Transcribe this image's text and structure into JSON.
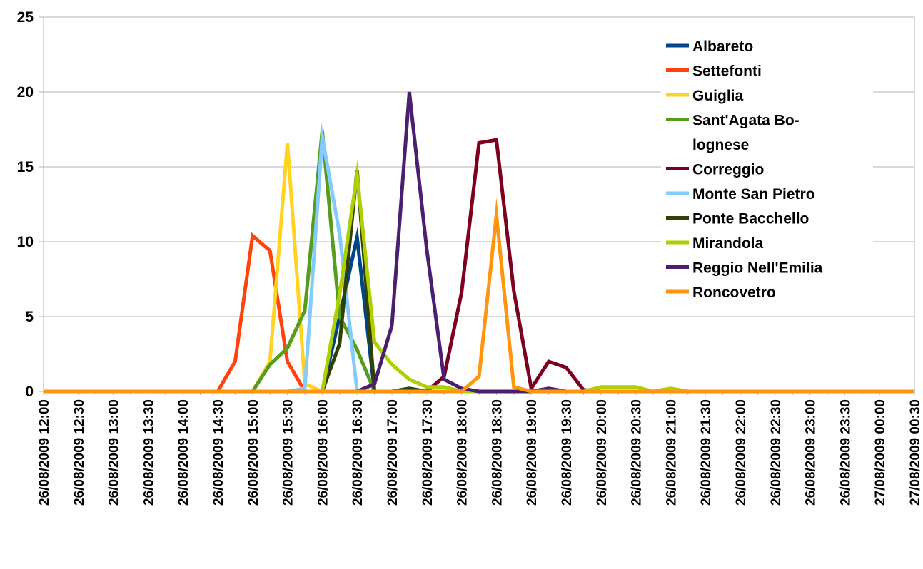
{
  "chart_data": {
    "type": "line",
    "title": "",
    "xlabel": "",
    "ylabel": "",
    "ylim": [
      0,
      25
    ],
    "y_ticks": [
      "0",
      "5",
      "10",
      "15",
      "20",
      "25"
    ],
    "grid": "horizontal",
    "legend_position": "top-right",
    "x": [
      "26/08/2009 12:00",
      "26/08/2009 12:15",
      "26/08/2009 12:30",
      "26/08/2009 12:45",
      "26/08/2009 13:00",
      "26/08/2009 13:15",
      "26/08/2009 13:30",
      "26/08/2009 13:45",
      "26/08/2009 14:00",
      "26/08/2009 14:15",
      "26/08/2009 14:30",
      "26/08/2009 14:45",
      "26/08/2009 15:00",
      "26/08/2009 15:15",
      "26/08/2009 15:30",
      "26/08/2009 15:45",
      "26/08/2009 16:00",
      "26/08/2009 16:15",
      "26/08/2009 16:30",
      "26/08/2009 16:45",
      "26/08/2009 17:00",
      "26/08/2009 17:15",
      "26/08/2009 17:30",
      "26/08/2009 17:45",
      "26/08/2009 18:00",
      "26/08/2009 18:15",
      "26/08/2009 18:30",
      "26/08/2009 18:45",
      "26/08/2009 19:00",
      "26/08/2009 19:15",
      "26/08/2009 19:30",
      "26/08/2009 19:45",
      "26/08/2009 20:00",
      "26/08/2009 20:15",
      "26/08/2009 20:30",
      "26/08/2009 20:45",
      "26/08/2009 21:00",
      "26/08/2009 21:15",
      "26/08/2009 21:30",
      "26/08/2009 21:45",
      "26/08/2009 22:00",
      "26/08/2009 22:15",
      "26/08/2009 22:30",
      "26/08/2009 22:45",
      "26/08/2009 23:00",
      "26/08/2009 23:15",
      "26/08/2009 23:30",
      "26/08/2009 23:45",
      "27/08/2009 00:00",
      "27/08/2009 00:15",
      "27/08/2009 00:30"
    ],
    "x_tick_labels": [
      "26/08/2009 12:00",
      "26/08/2009 12:30",
      "26/08/2009 13:00",
      "26/08/2009 13:30",
      "26/08/2009 14:00",
      "26/08/2009 14:30",
      "26/08/2009 15:00",
      "26/08/2009 15:30",
      "26/08/2009 16:00",
      "26/08/2009 16:30",
      "26/08/2009 17:00",
      "26/08/2009 17:30",
      "26/08/2009 18:00",
      "26/08/2009 18:30",
      "26/08/2009 19:00",
      "26/08/2009 19:30",
      "26/08/2009 20:00",
      "26/08/2009 20:30",
      "26/08/2009 21:00",
      "26/08/2009 21:30",
      "26/08/2009 22:00",
      "26/08/2009 22:30",
      "26/08/2009 23:00",
      "26/08/2009 23:30",
      "27/08/2009 00:00",
      "27/08/2009 00:30"
    ],
    "series": [
      {
        "name": "Albareto",
        "color": "#004586",
        "values": [
          0,
          0,
          0,
          0,
          0,
          0,
          0,
          0,
          0,
          0,
          0,
          0,
          0,
          0,
          0,
          0,
          0,
          5,
          10.3,
          0,
          0,
          0,
          0,
          0,
          0,
          0,
          0,
          0,
          0,
          0,
          0,
          0,
          0,
          0,
          0,
          0,
          0,
          0,
          0,
          0,
          0,
          0,
          0,
          0,
          0,
          0,
          0,
          0,
          0,
          0,
          0
        ]
      },
      {
        "name": "Settefonti",
        "color": "#ff420e",
        "values": [
          0,
          0,
          0,
          0,
          0,
          0,
          0,
          0,
          0,
          0,
          0,
          2,
          10.4,
          9.4,
          2,
          0,
          0,
          0,
          0,
          0,
          0,
          0,
          0,
          0,
          0,
          0,
          0,
          0,
          0,
          0,
          0,
          0,
          0,
          0,
          0,
          0,
          0,
          0,
          0,
          0,
          0,
          0,
          0,
          0,
          0,
          0,
          0,
          0,
          0,
          0,
          0
        ]
      },
      {
        "name": "Guiglia",
        "color": "#ffd320",
        "values": [
          0,
          0,
          0,
          0,
          0,
          0,
          0,
          0,
          0,
          0,
          0,
          0,
          0,
          2,
          16.6,
          0.5,
          0,
          0,
          0,
          0,
          0,
          0,
          0,
          0,
          0,
          0,
          0,
          0,
          0,
          0,
          0,
          0,
          0,
          0,
          0,
          0,
          0,
          0,
          0,
          0,
          0,
          0,
          0,
          0,
          0,
          0,
          0,
          0,
          0,
          0,
          0
        ]
      },
      {
        "name": "Sant'Agata Bolognese",
        "color": "#579d1c",
        "values": [
          0,
          0,
          0,
          0,
          0,
          0,
          0,
          0,
          0,
          0,
          0,
          0,
          0,
          1.8,
          2.9,
          5.4,
          17.4,
          5,
          2.8,
          0,
          0,
          0,
          0,
          0,
          0,
          0,
          0,
          0,
          0,
          0,
          0,
          0,
          0,
          0,
          0,
          0,
          0,
          0,
          0,
          0,
          0,
          0,
          0,
          0,
          0,
          0,
          0,
          0,
          0,
          0,
          0
        ]
      },
      {
        "name": "Correggio",
        "color": "#7e0021",
        "values": [
          0,
          0,
          0,
          0,
          0,
          0,
          0,
          0,
          0,
          0,
          0,
          0,
          0,
          0,
          0,
          0,
          0,
          0,
          0,
          0,
          0,
          0,
          0,
          1,
          6.6,
          16.6,
          16.8,
          6.7,
          0.2,
          2,
          1.6,
          0.1,
          0,
          0,
          0,
          0,
          0,
          0,
          0,
          0,
          0,
          0,
          0,
          0,
          0,
          0,
          0,
          0,
          0,
          0,
          0
        ]
      },
      {
        "name": "Monte San Pietro",
        "color": "#83caff",
        "values": [
          0,
          0,
          0,
          0,
          0,
          0,
          0,
          0,
          0,
          0,
          0,
          0,
          0,
          0,
          0,
          0.2,
          17,
          10.5,
          0,
          0,
          0,
          0,
          0,
          0,
          0,
          0,
          0,
          0,
          0,
          0,
          0,
          0,
          0,
          0,
          0,
          0,
          0,
          0,
          0,
          0,
          0,
          0,
          0,
          0,
          0,
          0,
          0,
          0,
          0,
          0,
          0
        ]
      },
      {
        "name": "Ponte Bacchello",
        "color": "#314004",
        "values": [
          0,
          0,
          0,
          0,
          0,
          0,
          0,
          0,
          0,
          0,
          0,
          0,
          0,
          0,
          0,
          0,
          0,
          3.2,
          14.8,
          0,
          0,
          0.2,
          0,
          0,
          0,
          0,
          0,
          0,
          0,
          0,
          0,
          0,
          0,
          0,
          0,
          0,
          0,
          0,
          0,
          0,
          0,
          0,
          0,
          0,
          0,
          0,
          0,
          0,
          0,
          0,
          0
        ]
      },
      {
        "name": "Mirandola",
        "color": "#aecf00",
        "values": [
          0,
          0,
          0,
          0,
          0,
          0,
          0,
          0,
          0,
          0,
          0,
          0,
          0,
          0,
          0,
          0,
          0,
          6.5,
          14.5,
          3.3,
          1.8,
          0.8,
          0.3,
          0.3,
          0,
          0,
          0,
          0,
          0,
          0,
          0,
          0,
          0.3,
          0.3,
          0.3,
          0,
          0.2,
          0,
          0,
          0,
          0,
          0,
          0,
          0,
          0,
          0,
          0,
          0,
          0,
          0,
          0
        ]
      },
      {
        "name": "Reggio Nell'Emilia",
        "color": "#4b1f6f",
        "values": [
          0,
          0,
          0,
          0,
          0,
          0,
          0,
          0,
          0,
          0,
          0,
          0,
          0,
          0,
          0,
          0,
          0,
          0,
          0,
          0.5,
          4.4,
          20,
          9.5,
          0.8,
          0.2,
          0,
          0,
          0,
          0,
          0.2,
          0,
          0,
          0,
          0,
          0,
          0,
          0,
          0,
          0,
          0,
          0,
          0,
          0,
          0,
          0,
          0,
          0,
          0,
          0,
          0,
          0
        ]
      },
      {
        "name": "Roncovetro",
        "color": "#ff950e",
        "values": [
          0,
          0,
          0,
          0,
          0,
          0,
          0,
          0,
          0,
          0,
          0,
          0,
          0,
          0,
          0,
          0,
          0,
          0,
          0,
          0,
          0,
          0,
          0,
          0,
          0,
          1,
          11.8,
          0.3,
          0,
          0,
          0,
          0,
          0,
          0,
          0,
          0,
          0,
          0,
          0,
          0,
          0,
          0,
          0,
          0,
          0,
          0,
          0,
          0,
          0,
          0,
          0
        ]
      }
    ],
    "legend": [
      {
        "name": "Albareto",
        "lines": [
          "Albareto"
        ]
      },
      {
        "name": "Settefonti",
        "lines": [
          "Settefonti"
        ]
      },
      {
        "name": "Guiglia",
        "lines": [
          "Guiglia"
        ]
      },
      {
        "name": "Sant'Agata Bolognese",
        "lines": [
          "Sant'Agata Bo-",
          "lognese"
        ]
      },
      {
        "name": "Correggio",
        "lines": [
          "Correggio"
        ]
      },
      {
        "name": "Monte San Pietro",
        "lines": [
          "Monte San Pietro"
        ]
      },
      {
        "name": "Ponte Bacchello",
        "lines": [
          "Ponte Bacchello"
        ]
      },
      {
        "name": "Mirandola",
        "lines": [
          "Mirandola"
        ]
      },
      {
        "name": "Reggio Nell'Emilia",
        "lines": [
          "Reggio Nell'Emilia"
        ]
      },
      {
        "name": "Roncovetro",
        "lines": [
          "Roncovetro"
        ]
      }
    ]
  }
}
